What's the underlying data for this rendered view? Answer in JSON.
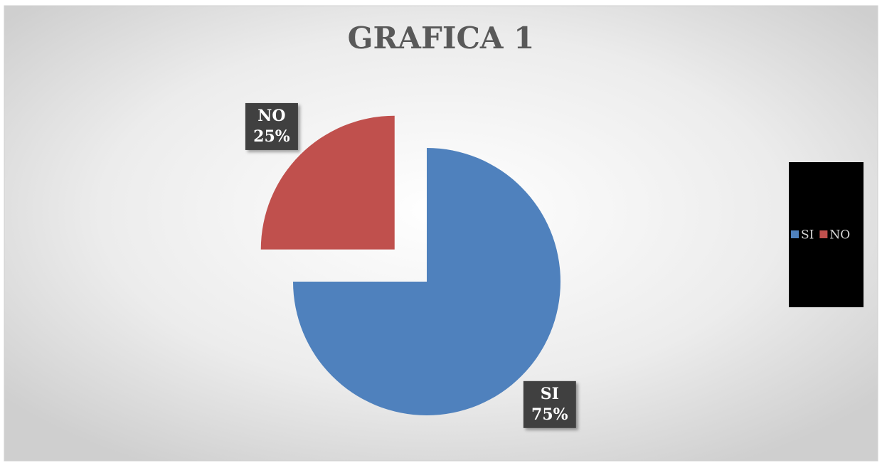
{
  "chart_data": {
    "type": "pie",
    "title": "GRAFICA 1",
    "categories": [
      "SI",
      "NO"
    ],
    "values": [
      75,
      25
    ],
    "value_labels": [
      "75%",
      "25%"
    ],
    "colors": [
      "#4f81bd",
      "#c0504d"
    ],
    "exploded": [
      false,
      true
    ],
    "legend": "right"
  }
}
